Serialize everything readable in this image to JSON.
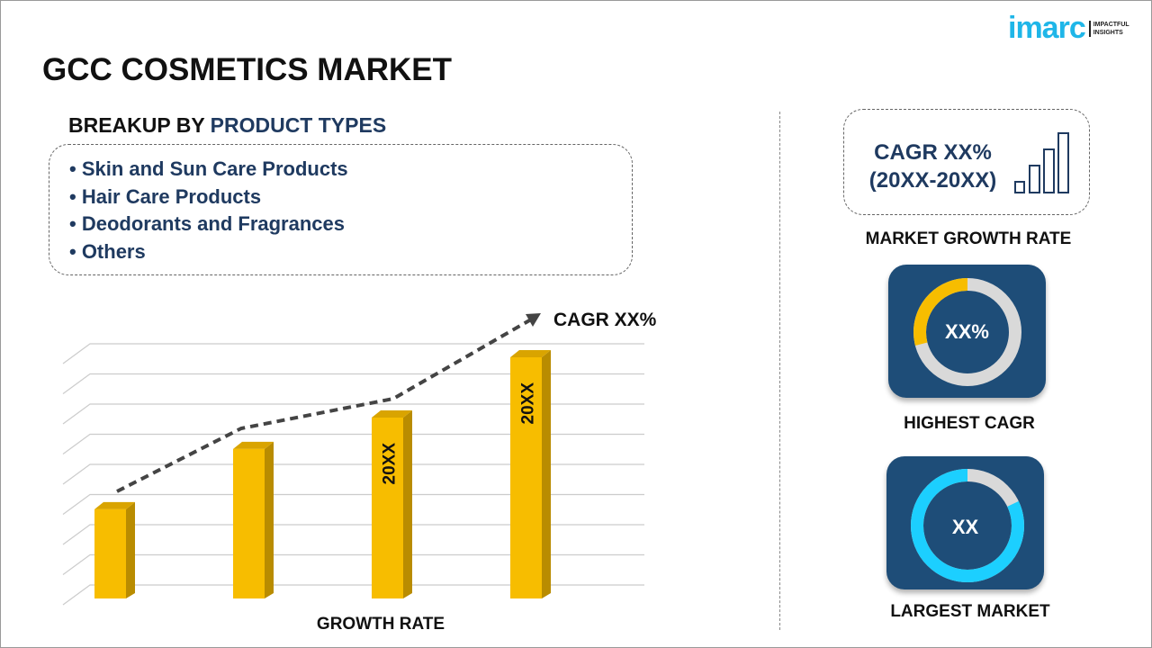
{
  "title": "GCC COSMETICS MARKET",
  "logo": {
    "word": "imarc",
    "tagline_1": "IMPACTFUL",
    "tagline_2": "INSIGHTS"
  },
  "breakup": {
    "prefix": "BREAKUP BY ",
    "highlight": "PRODUCT TYPES",
    "items": [
      "• Skin and Sun Care Products",
      "• Hair Care Products",
      "• Deodorants and Fragrances",
      "• Others"
    ]
  },
  "growth": {
    "line1": "CAGR XX%",
    "line2": "(20XX-20XX)",
    "label": "MARKET GROWTH RATE"
  },
  "highest": {
    "value": "XX%",
    "label": "HIGHEST CAGR",
    "fill_fraction": 0.29
  },
  "largest": {
    "value": "XX",
    "label": "LARGEST MARKET",
    "fill_fraction": 0.82
  },
  "colors": {
    "navy": "#1f3a60",
    "bar": "#f7bd00",
    "card": "#1e4d78",
    "cyan": "#1ccfff",
    "ring_gray": "#d9d9d9"
  },
  "chart_data": {
    "type": "bar",
    "xlabel": "GROWTH RATE",
    "categories": [
      "",
      "",
      "20XX",
      "20XX"
    ],
    "values": [
      37,
      62,
      75,
      100
    ],
    "trend_label": "CAGR XX%",
    "grid": true
  }
}
